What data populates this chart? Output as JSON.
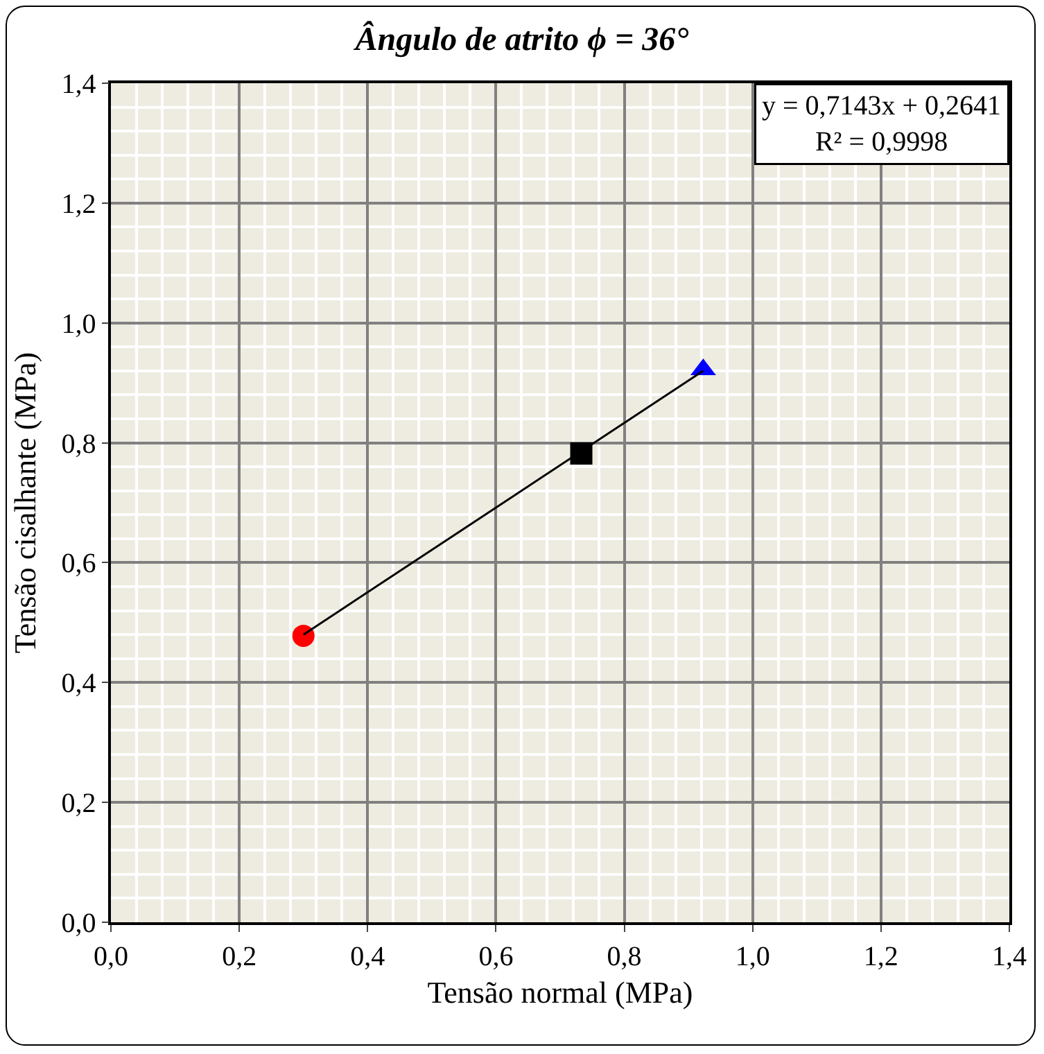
{
  "chart_data": {
    "type": "scatter",
    "title": "Ângulo de atrito ϕ = 36°",
    "xlabel": "Tensão normal (MPa)",
    "ylabel": "Tensão cisalhante (MPa)",
    "annotations": [
      "y = 0,7143x + 0,2641\nR² = 0,9998"
    ],
    "series": [
      {
        "color": "#ff0000",
        "marker": "circle",
        "x": [
          0.3
        ],
        "values": [
          0.478
        ]
      },
      {
        "color": "#000000",
        "marker": "square",
        "x": [
          0.733
        ],
        "values": [
          0.782
        ]
      },
      {
        "color": "#0000ff",
        "marker": "triangle",
        "x": [
          0.923
        ],
        "values": [
          0.922
        ]
      },
      {
        "type": "line",
        "color": "#000000",
        "marker": "none",
        "line_style": "solid",
        "x": [
          0.3,
          0.923
        ],
        "values": [
          0.48,
          0.92
        ]
      }
    ],
    "xlim": [
      0,
      1.4
    ],
    "ylim": [
      0,
      1.4
    ],
    "xticks": [
      {
        "value": 0,
        "label": "0,0"
      },
      {
        "value": 0.2,
        "label": "0,2"
      },
      {
        "value": 0.4,
        "label": "0,4"
      },
      {
        "value": 0.6,
        "label": "0,6"
      },
      {
        "value": 0.8,
        "label": "0,8"
      },
      {
        "value": 1,
        "label": "1,0"
      },
      {
        "value": 1.2,
        "label": "1,2"
      },
      {
        "value": 1.4,
        "label": "1,4"
      }
    ],
    "yticks": [
      {
        "value": 0,
        "label": "0,0"
      },
      {
        "value": 0.2,
        "label": "0,2"
      },
      {
        "value": 0.4,
        "label": "0,4"
      },
      {
        "value": 0.6,
        "label": "0,6"
      },
      {
        "value": 0.8,
        "label": "0,8"
      },
      {
        "value": 1,
        "label": "1,0"
      },
      {
        "value": 1.2,
        "label": "1,2"
      },
      {
        "value": 1.4,
        "label": "1,4"
      }
    ],
    "grid": true
  }
}
